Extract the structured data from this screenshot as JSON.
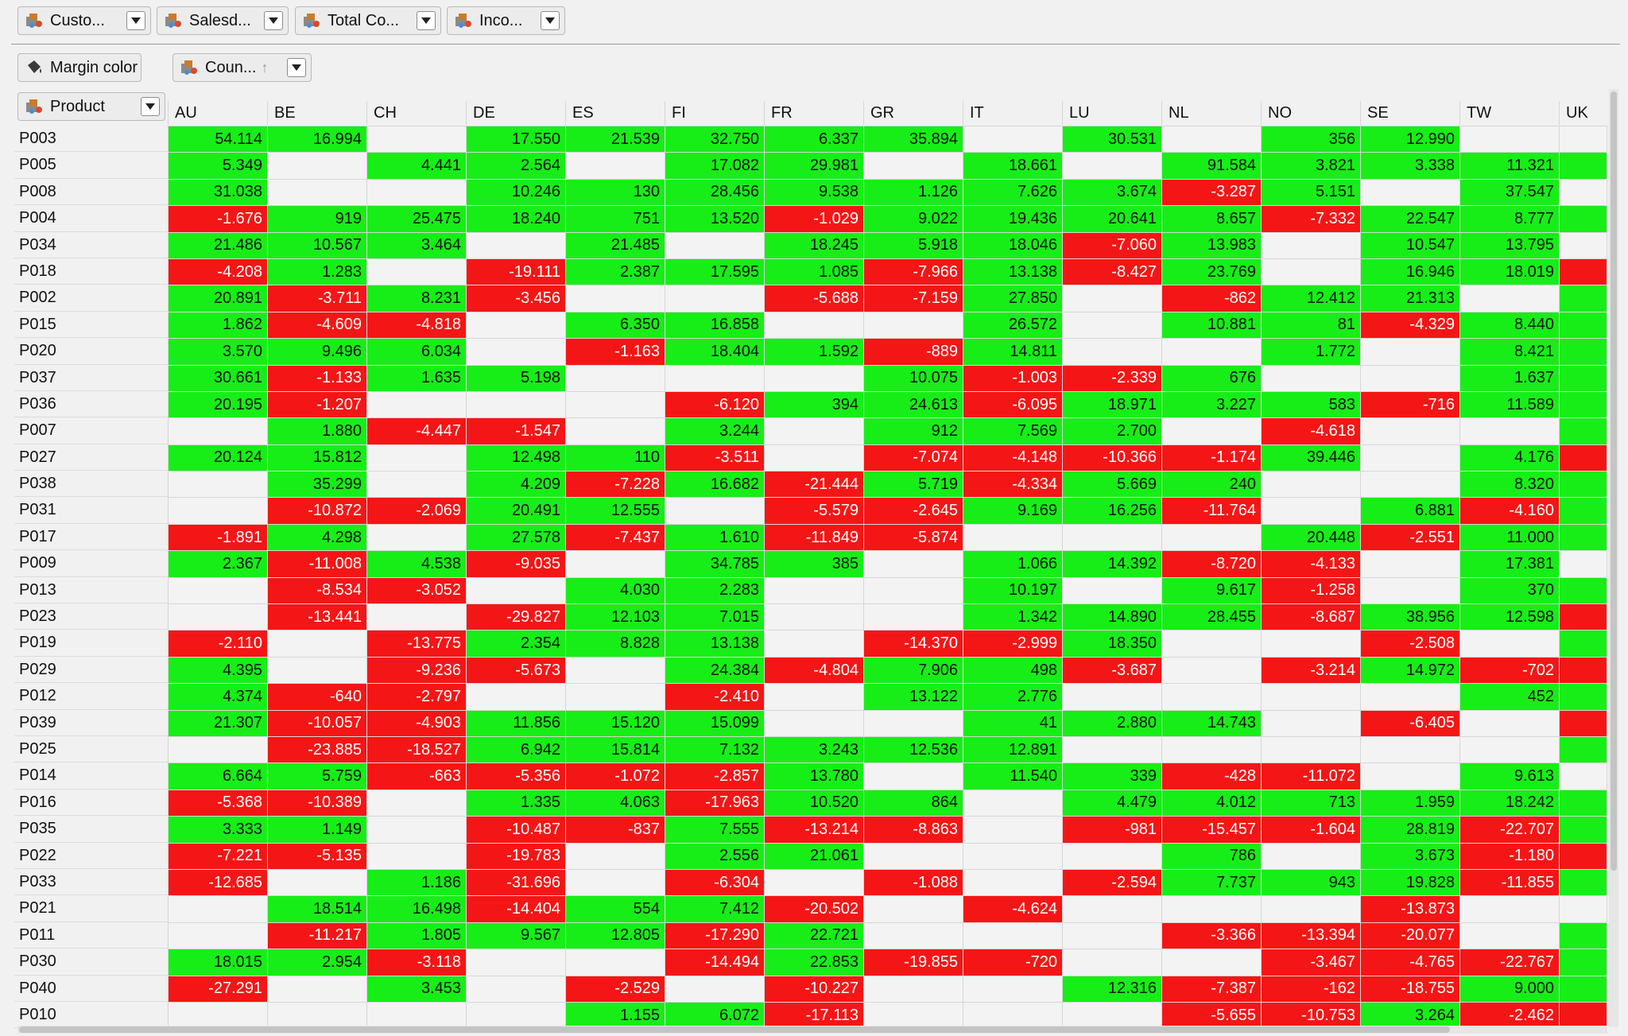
{
  "toolbar": {
    "filters": [
      {
        "label": "Custo..."
      },
      {
        "label": "Salesd..."
      },
      {
        "label": "Total Co..."
      },
      {
        "label": "Inco..."
      }
    ]
  },
  "margin_color_button": {
    "label": "Margin color"
  },
  "column_field": {
    "label": "Coun...",
    "sort_arrow": "↑"
  },
  "row_field": {
    "label": "Product"
  },
  "colors": {
    "positive": "#17ee17",
    "negative": "#f41616",
    "empty": "#f3f3f3"
  },
  "columns": [
    "AU",
    "BE",
    "CH",
    "DE",
    "ES",
    "FI",
    "FR",
    "GR",
    "IT",
    "LU",
    "NL",
    "NO",
    "SE",
    "TW",
    "UK"
  ],
  "rows": [
    {
      "product": "P003",
      "values": [
        "54.114",
        "16.994",
        "",
        "17.550",
        "21.539",
        "32.750",
        "6.337",
        "35.894",
        "",
        "30.531",
        "",
        "356",
        "12.990",
        "",
        ""
      ]
    },
    {
      "product": "P005",
      "values": [
        "5.349",
        "",
        "4.441",
        "2.564",
        "",
        "17.082",
        "29.981",
        "",
        "18.661",
        "",
        "91.584",
        "3.821",
        "3.338",
        "11.321",
        "+"
      ]
    },
    {
      "product": "P008",
      "values": [
        "31.038",
        "",
        "",
        "10.246",
        "130",
        "28.456",
        "9.538",
        "1.126",
        "7.626",
        "3.674",
        "-3.287",
        "5.151",
        "",
        "37.547",
        ""
      ]
    },
    {
      "product": "P004",
      "values": [
        "-1.676",
        "919",
        "25.475",
        "18.240",
        "751",
        "13.520",
        "-1.029",
        "9.022",
        "19.436",
        "20.641",
        "8.657",
        "-7.332",
        "22.547",
        "8.777",
        "+"
      ]
    },
    {
      "product": "P034",
      "values": [
        "21.486",
        "10.567",
        "3.464",
        "",
        "21.485",
        "",
        "18.245",
        "5.918",
        "18.046",
        "-7.060",
        "13.983",
        "",
        "10.547",
        "13.795",
        ""
      ]
    },
    {
      "product": "P018",
      "values": [
        "-4.208",
        "1.283",
        "",
        "-19.111",
        "2.387",
        "17.595",
        "1.085",
        "-7.966",
        "13.138",
        "-8.427",
        "23.769",
        "",
        "16.946",
        "18.019",
        "-"
      ]
    },
    {
      "product": "P002",
      "values": [
        "20.891",
        "-3.711",
        "8.231",
        "-3.456",
        "",
        "",
        "-5.688",
        "-7.159",
        "27.850",
        "",
        "-862",
        "12.412",
        "21.313",
        "",
        "+"
      ]
    },
    {
      "product": "P015",
      "values": [
        "1.862",
        "-4.609",
        "-4.818",
        "",
        "6.350",
        "16.858",
        "",
        "",
        "26.572",
        "",
        "10.881",
        "81",
        "-4.329",
        "8.440",
        "+"
      ]
    },
    {
      "product": "P020",
      "values": [
        "3.570",
        "9.496",
        "6.034",
        "",
        "-1.163",
        "18.404",
        "1.592",
        "-889",
        "14.811",
        "",
        "",
        "1.772",
        "",
        "8.421",
        "+"
      ]
    },
    {
      "product": "P037",
      "values": [
        "30.661",
        "-1.133",
        "1.635",
        "5.198",
        "",
        "",
        "",
        "10.075",
        "-1.003",
        "-2.339",
        "676",
        "",
        "",
        "1.637",
        "+"
      ]
    },
    {
      "product": "P036",
      "values": [
        "20.195",
        "-1.207",
        "",
        "",
        "",
        "-6.120",
        "394",
        "24.613",
        "-6.095",
        "18.971",
        "3.227",
        "583",
        "-716",
        "11.589",
        "+"
      ]
    },
    {
      "product": "P007",
      "values": [
        "",
        "1.880",
        "-4.447",
        "-1.547",
        "",
        "3.244",
        "",
        "912",
        "7.569",
        "2.700",
        "",
        "-4.618",
        "",
        "",
        "+"
      ]
    },
    {
      "product": "P027",
      "values": [
        "20.124",
        "15.812",
        "",
        "12.498",
        "110",
        "-3.511",
        "",
        "-7.074",
        "-4.148",
        "-10.366",
        "-1.174",
        "39.446",
        "",
        "4.176",
        "-"
      ]
    },
    {
      "product": "P038",
      "values": [
        "",
        "35.299",
        "",
        "4.209",
        "-7.228",
        "16.682",
        "-21.444",
        "5.719",
        "-4.334",
        "5.669",
        "240",
        "",
        "",
        "8.320",
        "+"
      ]
    },
    {
      "product": "P031",
      "values": [
        "",
        "-10.872",
        "-2.069",
        "20.491",
        "12.555",
        "",
        "-5.579",
        "-2.645",
        "9.169",
        "16.256",
        "-11.764",
        "",
        "6.881",
        "-4.160",
        "+"
      ]
    },
    {
      "product": "P017",
      "values": [
        "-1.891",
        "4.298",
        "",
        "27.578",
        "-7.437",
        "1.610",
        "-11.849",
        "-5.874",
        "",
        "",
        "",
        "20.448",
        "-2.551",
        "11.000",
        "+"
      ]
    },
    {
      "product": "P009",
      "values": [
        "2.367",
        "-11.008",
        "4.538",
        "-9.035",
        "",
        "34.785",
        "385",
        "",
        "1.066",
        "14.392",
        "-8.720",
        "-4.133",
        "",
        "17.381",
        ""
      ]
    },
    {
      "product": "P013",
      "values": [
        "",
        "-8.534",
        "-3.052",
        "",
        "4.030",
        "2.283",
        "",
        "",
        "10.197",
        "",
        "9.617",
        "-1.258",
        "",
        "370",
        "+"
      ]
    },
    {
      "product": "P023",
      "values": [
        "",
        "-13.441",
        "",
        "-29.827",
        "12.103",
        "7.015",
        "",
        "",
        "1.342",
        "14.890",
        "28.455",
        "-8.687",
        "38.956",
        "12.598",
        "-"
      ]
    },
    {
      "product": "P019",
      "values": [
        "-2.110",
        "",
        "-13.775",
        "2.354",
        "8.828",
        "13.138",
        "",
        "-14.370",
        "-2.999",
        "18.350",
        "",
        "",
        "-2.508",
        "",
        "+"
      ]
    },
    {
      "product": "P029",
      "values": [
        "4.395",
        "",
        "-9.236",
        "-5.673",
        "",
        "24.384",
        "-4.804",
        "7.906",
        "498",
        "-3.687",
        "",
        "-3.214",
        "14.972",
        "-702",
        "-"
      ]
    },
    {
      "product": "P012",
      "values": [
        "4.374",
        "-640",
        "-2.797",
        "",
        "",
        "-2.410",
        "",
        "13.122",
        "2.776",
        "",
        "",
        "",
        "",
        "452",
        "+"
      ]
    },
    {
      "product": "P039",
      "values": [
        "21.307",
        "-10.057",
        "-4.903",
        "11.856",
        "15.120",
        "15.099",
        "",
        "",
        "41",
        "2.880",
        "14.743",
        "",
        "-6.405",
        "",
        "-"
      ]
    },
    {
      "product": "P025",
      "values": [
        "",
        "-23.885",
        "-18.527",
        "6.942",
        "15.814",
        "7.132",
        "3.243",
        "12.536",
        "12.891",
        "",
        "",
        "",
        "",
        "",
        "+"
      ]
    },
    {
      "product": "P014",
      "values": [
        "6.664",
        "5.759",
        "-663",
        "-5.356",
        "-1.072",
        "-2.857",
        "13.780",
        "",
        "11.540",
        "339",
        "-428",
        "-11.072",
        "",
        "9.613",
        ""
      ]
    },
    {
      "product": "P016",
      "values": [
        "-5.368",
        "-10.389",
        "",
        "1.335",
        "4.063",
        "-17.963",
        "10.520",
        "864",
        "",
        "4.479",
        "4.012",
        "713",
        "1.959",
        "18.242",
        "+"
      ]
    },
    {
      "product": "P035",
      "values": [
        "3.333",
        "1.149",
        "",
        "-10.487",
        "-837",
        "7.555",
        "-13.214",
        "-8.863",
        "",
        "-981",
        "-15.457",
        "-1.604",
        "28.819",
        "-22.707",
        "+"
      ]
    },
    {
      "product": "P022",
      "values": [
        "-7.221",
        "-5.135",
        "",
        "-19.783",
        "",
        "2.556",
        "21.061",
        "",
        "",
        "",
        "786",
        "",
        "3.673",
        "-1.180",
        "-"
      ]
    },
    {
      "product": "P033",
      "values": [
        "-12.685",
        "",
        "1.186",
        "-31.696",
        "",
        "-6.304",
        "",
        "-1.088",
        "",
        "-2.594",
        "7.737",
        "943",
        "19.828",
        "-11.855",
        "+"
      ]
    },
    {
      "product": "P021",
      "values": [
        "",
        "18.514",
        "16.498",
        "-14.404",
        "554",
        "7.412",
        "-20.502",
        "",
        "-4.624",
        "",
        "",
        "",
        "-13.873",
        "",
        ""
      ]
    },
    {
      "product": "P011",
      "values": [
        "",
        "-11.217",
        "1.805",
        "9.567",
        "12.805",
        "-17.290",
        "22.721",
        "",
        "",
        "",
        "-3.366",
        "-13.394",
        "-20.077",
        "",
        "+"
      ]
    },
    {
      "product": "P030",
      "values": [
        "18.015",
        "2.954",
        "-3.118",
        "",
        "",
        "-14.494",
        "22.853",
        "-19.855",
        "-720",
        "",
        "",
        "-3.467",
        "-4.765",
        "-22.767",
        "+"
      ]
    },
    {
      "product": "P040",
      "values": [
        "-27.291",
        "",
        "3.453",
        "",
        "-2.529",
        "",
        "-10.227",
        "",
        "",
        "12.316",
        "-7.387",
        "-162",
        "-18.755",
        "9.000",
        "+"
      ]
    },
    {
      "product": "P010",
      "values": [
        "",
        "",
        "",
        "",
        "1.155",
        "6.072",
        "-17.113",
        "",
        "",
        "",
        "-5.655",
        "-10.753",
        "3.264",
        "-2.462",
        "-"
      ]
    }
  ]
}
